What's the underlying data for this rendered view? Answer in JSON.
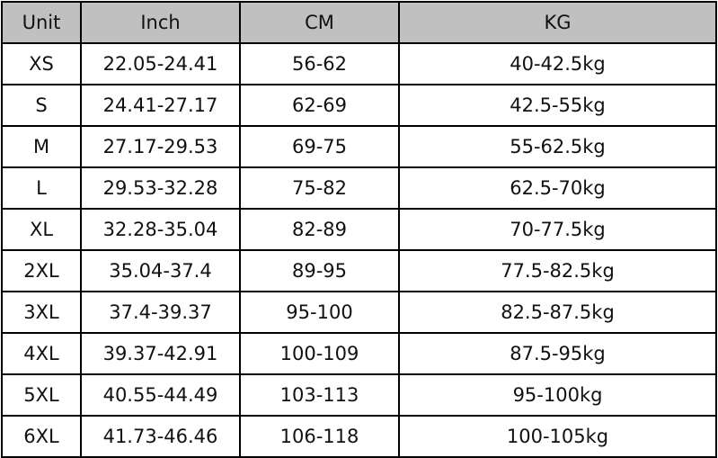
{
  "colors": {
    "header_bg": "#c0c0c0",
    "border": "#000000"
  },
  "headers": [
    "Unit",
    "Inch",
    "CM",
    "KG"
  ],
  "rows": [
    [
      "XS",
      "22.05-24.41",
      "56-62",
      "40-42.5kg"
    ],
    [
      "S",
      "24.41-27.17",
      "62-69",
      "42.5-55kg"
    ],
    [
      "M",
      "27.17-29.53",
      "69-75",
      "55-62.5kg"
    ],
    [
      "L",
      "29.53-32.28",
      "75-82",
      "62.5-70kg"
    ],
    [
      "XL",
      "32.28-35.04",
      "82-89",
      "70-77.5kg"
    ],
    [
      "2XL",
      "35.04-37.4",
      "89-95",
      "77.5-82.5kg"
    ],
    [
      "3XL",
      "37.4-39.37",
      "95-100",
      "82.5-87.5kg"
    ],
    [
      "4XL",
      "39.37-42.91",
      "100-109",
      "87.5-95kg"
    ],
    [
      "5XL",
      "40.55-44.49",
      "103-113",
      "95-100kg"
    ],
    [
      "6XL",
      "41.73-46.46",
      "106-118",
      "100-105kg"
    ]
  ]
}
